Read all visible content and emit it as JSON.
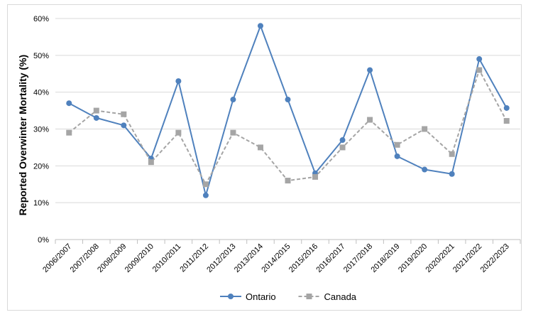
{
  "chart_data": {
    "type": "line",
    "title": "",
    "xlabel": "",
    "ylabel": "Reported Overwinter Mortality (%)",
    "ylim": [
      0,
      60
    ],
    "ytick_step": 10,
    "ytick_suffix": "%",
    "grid": "horizontal",
    "legend_position": "bottom",
    "categories": [
      "2006/2007",
      "2007/2008",
      "2008/2009",
      "2009/2010",
      "2010/2011",
      "2011/2012",
      "2012/2013",
      "2013/2014",
      "2014/2015",
      "2015/2016",
      "2016/2017",
      "2017/2018",
      "2018/2019",
      "2019/2020",
      "2020/2021",
      "2021/2022",
      "2022/2023"
    ],
    "series": [
      {
        "name": "Ontario",
        "color": "#4f81bd",
        "style": "solid",
        "marker": "circle",
        "values": [
          37,
          33,
          31,
          22,
          43,
          12,
          38,
          58,
          38,
          18,
          27,
          46,
          22.6,
          19,
          17.8,
          49,
          35.7
        ]
      },
      {
        "name": "Canada",
        "color": "#a5a5a5",
        "style": "dashed",
        "marker": "square",
        "values": [
          29,
          35,
          34,
          21,
          29,
          15,
          29,
          25,
          16,
          17,
          25,
          32.5,
          25.7,
          30,
          23.2,
          46,
          32.2
        ]
      }
    ]
  }
}
